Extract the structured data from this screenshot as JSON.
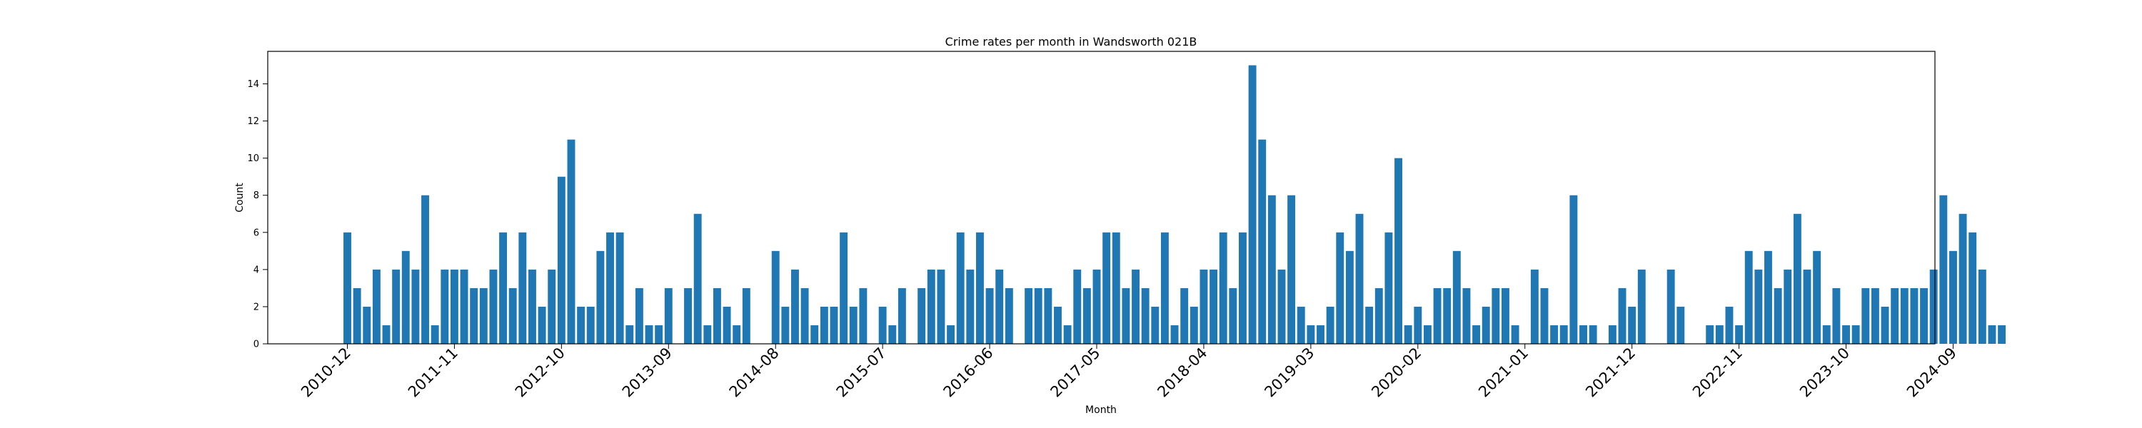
{
  "chart_data": {
    "type": "bar",
    "title": "Crime rates per month in Wandsworth 021B",
    "xlabel": "Month",
    "ylabel": "Count",
    "ylim": [
      0,
      15.75
    ],
    "yticks": [
      0,
      2,
      4,
      6,
      8,
      10,
      12,
      14
    ],
    "xtick_labels": [
      "2010-12",
      "2011-11",
      "2012-10",
      "2013-09",
      "2014-08",
      "2015-07",
      "2016-06",
      "2017-05",
      "2018-04",
      "2019-03",
      "2020-02",
      "2021-01",
      "2021-12",
      "2022-11",
      "2023-10",
      "2024-09"
    ],
    "bar_color": "#1f77b4",
    "grid": false,
    "start_month": "2010-12",
    "values": [
      6,
      3,
      2,
      4,
      1,
      4,
      5,
      4,
      8,
      1,
      4,
      4,
      4,
      3,
      3,
      4,
      6,
      3,
      6,
      4,
      2,
      4,
      9,
      11,
      2,
      2,
      5,
      6,
      6,
      1,
      3,
      1,
      1,
      3,
      0,
      3,
      7,
      1,
      3,
      2,
      1,
      3,
      0,
      0,
      5,
      2,
      4,
      3,
      1,
      2,
      2,
      6,
      2,
      3,
      0,
      2,
      1,
      3,
      0,
      3,
      4,
      4,
      1,
      6,
      4,
      6,
      3,
      4,
      3,
      0,
      3,
      3,
      3,
      2,
      1,
      4,
      3,
      4,
      6,
      6,
      3,
      4,
      3,
      2,
      6,
      1,
      3,
      2,
      4,
      4,
      6,
      3,
      6,
      15,
      11,
      8,
      4,
      8,
      2,
      1,
      1,
      2,
      6,
      5,
      7,
      2,
      3,
      6,
      10,
      1,
      2,
      1,
      3,
      3,
      5,
      3,
      1,
      2,
      3,
      3,
      1,
      0,
      4,
      3,
      1,
      1,
      8,
      1,
      1,
      0,
      1,
      3,
      2,
      4,
      0,
      0,
      4,
      2,
      0,
      0,
      1,
      1,
      2,
      1,
      5,
      4,
      5,
      3,
      4,
      7,
      4,
      5,
      1,
      3,
      1,
      1,
      3,
      3,
      2,
      3,
      3,
      3,
      3,
      4,
      8,
      5,
      7,
      6,
      4,
      1,
      1
    ]
  }
}
